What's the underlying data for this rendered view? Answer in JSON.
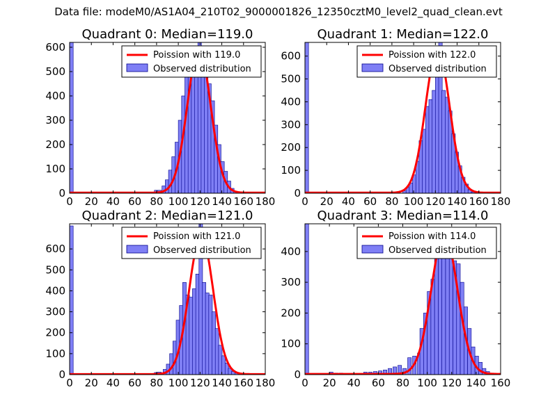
{
  "suptitle": "Data file: modeM0/AS1A04_210T02_9000001826_12350cztM0_level2_quad_clean.evt",
  "colors": {
    "bar_fill": "#7f7ff5",
    "bar_edge": "#00008b",
    "line": "#ff0000",
    "axes": "#000000"
  },
  "chart_data": [
    {
      "type": "bar",
      "title": "Quadrant 0: Median=119.0",
      "xlim": [
        0,
        180
      ],
      "ylim": [
        0,
        620
      ],
      "xticks": [
        0,
        20,
        40,
        60,
        80,
        100,
        120,
        140,
        160,
        180
      ],
      "yticks": [
        0,
        100,
        200,
        300,
        400,
        500,
        600
      ],
      "legend": {
        "location": "top-right",
        "entries": [
          "Poission with 119.0",
          "Observed distribution"
        ]
      },
      "series": [
        {
          "name": "Poission with 119.0",
          "kind": "line",
          "lambda": 119.0,
          "peak": 590,
          "sigma": 10.8
        },
        {
          "name": "Observed distribution",
          "kind": "hist",
          "bin_width": 3.3,
          "bins": [
            [
              0,
              620
            ],
            [
              78,
              12
            ],
            [
              81,
              12
            ],
            [
              85,
              30
            ],
            [
              88,
              55
            ],
            [
              91,
              95
            ],
            [
              94,
              150
            ],
            [
              97,
              210
            ],
            [
              100,
              300
            ],
            [
              103,
              400
            ],
            [
              106,
              480
            ],
            [
              109,
              500
            ],
            [
              112,
              550
            ],
            [
              115,
              560
            ],
            [
              118,
              620
            ],
            [
              121,
              560
            ],
            [
              124,
              520
            ],
            [
              127,
              450
            ],
            [
              130,
              380
            ],
            [
              133,
              280
            ],
            [
              136,
              200
            ],
            [
              139,
              130
            ],
            [
              142,
              90
            ],
            [
              145,
              50
            ],
            [
              148,
              20
            ],
            [
              151,
              8
            ]
          ]
        }
      ]
    },
    {
      "type": "bar",
      "title": "Quadrant 1: Median=122.0",
      "xlim": [
        0,
        180
      ],
      "ylim": [
        0,
        660
      ],
      "xticks": [
        0,
        20,
        40,
        60,
        80,
        100,
        120,
        140,
        160,
        180
      ],
      "yticks": [
        0,
        100,
        200,
        300,
        400,
        500,
        600
      ],
      "legend": {
        "location": "top-right",
        "entries": [
          "Poission with 122.0",
          "Observed distribution"
        ]
      },
      "series": [
        {
          "name": "Poission with 122.0",
          "kind": "line",
          "lambda": 122.0,
          "peak": 630,
          "sigma": 11
        },
        {
          "name": "Observed distribution",
          "kind": "hist",
          "bin_width": 3.3,
          "bins": [
            [
              0,
              660
            ],
            [
              90,
              10
            ],
            [
              93,
              25
            ],
            [
              96,
              45
            ],
            [
              99,
              80
            ],
            [
              102,
              140
            ],
            [
              105,
              230
            ],
            [
              108,
              280
            ],
            [
              111,
              380
            ],
            [
              114,
              410
            ],
            [
              117,
              450
            ],
            [
              120,
              520
            ],
            [
              123,
              660
            ],
            [
              126,
              450
            ],
            [
              129,
              420
            ],
            [
              132,
              360
            ],
            [
              135,
              260
            ],
            [
              138,
              180
            ],
            [
              141,
              120
            ],
            [
              144,
              70
            ],
            [
              147,
              40
            ],
            [
              150,
              15
            ],
            [
              153,
              5
            ]
          ]
        }
      ]
    },
    {
      "type": "bar",
      "title": "Quadrant 2: Median=121.0",
      "xlim": [
        0,
        180
      ],
      "ylim": [
        0,
        720
      ],
      "xticks": [
        0,
        20,
        40,
        60,
        80,
        100,
        120,
        140,
        160,
        180
      ],
      "yticks": [
        0,
        100,
        200,
        300,
        400,
        500,
        600
      ],
      "legend": {
        "location": "top-right",
        "entries": [
          "Poission with 121.0",
          "Observed distribution"
        ]
      },
      "series": [
        {
          "name": "Poission with 121.0",
          "kind": "line",
          "lambda": 121.0,
          "peak": 665,
          "sigma": 11
        },
        {
          "name": "Observed distribution",
          "kind": "hist",
          "bin_width": 3.3,
          "bins": [
            [
              0,
              710
            ],
            [
              78,
              10
            ],
            [
              81,
              12
            ],
            [
              86,
              25
            ],
            [
              89,
              50
            ],
            [
              92,
              100
            ],
            [
              95,
              160
            ],
            [
              98,
              260
            ],
            [
              101,
              330
            ],
            [
              104,
              440
            ],
            [
              107,
              380
            ],
            [
              110,
              370
            ],
            [
              113,
              410
            ],
            [
              116,
              480
            ],
            [
              119,
              720
            ],
            [
              122,
              440
            ],
            [
              125,
              390
            ],
            [
              128,
              380
            ],
            [
              131,
              300
            ],
            [
              134,
              220
            ],
            [
              137,
              140
            ],
            [
              140,
              90
            ],
            [
              143,
              55
            ],
            [
              146,
              30
            ],
            [
              149,
              15
            ],
            [
              152,
              8
            ],
            [
              155,
              4
            ]
          ]
        }
      ]
    },
    {
      "type": "bar",
      "title": "Quadrant 3: Median=114.0",
      "xlim": [
        0,
        160
      ],
      "ylim": [
        0,
        490
      ],
      "xticks": [
        0,
        20,
        40,
        60,
        80,
        100,
        120,
        140,
        160
      ],
      "yticks": [
        0,
        100,
        200,
        300,
        400
      ],
      "legend": {
        "location": "top-right",
        "entries": [
          "Poission with 114.0",
          "Observed distribution"
        ]
      },
      "series": [
        {
          "name": "Poission with 114.0",
          "kind": "line",
          "lambda": 114.0,
          "peak": 455,
          "sigma": 10.7
        },
        {
          "name": "Observed distribution",
          "kind": "hist",
          "bin_width": 3.0,
          "bins": [
            [
              0,
              490
            ],
            [
              20,
              8
            ],
            [
              24,
              5
            ],
            [
              28,
              5
            ],
            [
              44,
              4
            ],
            [
              48,
              8
            ],
            [
              52,
              8
            ],
            [
              56,
              10
            ],
            [
              60,
              12
            ],
            [
              64,
              15
            ],
            [
              68,
              20
            ],
            [
              72,
              25
            ],
            [
              76,
              30
            ],
            [
              80,
              20
            ],
            [
              84,
              55
            ],
            [
              88,
              60
            ],
            [
              92,
              70
            ],
            [
              94,
              150
            ],
            [
              97,
              200
            ],
            [
              100,
              270
            ],
            [
              103,
              310
            ],
            [
              106,
              380
            ],
            [
              109,
              450
            ],
            [
              112,
              440
            ],
            [
              115,
              460
            ],
            [
              118,
              420
            ],
            [
              121,
              370
            ],
            [
              124,
              360
            ],
            [
              127,
              300
            ],
            [
              130,
              220
            ],
            [
              133,
              150
            ],
            [
              136,
              90
            ],
            [
              139,
              60
            ],
            [
              142,
              40
            ],
            [
              145,
              20
            ],
            [
              148,
              10
            ]
          ]
        }
      ]
    }
  ]
}
